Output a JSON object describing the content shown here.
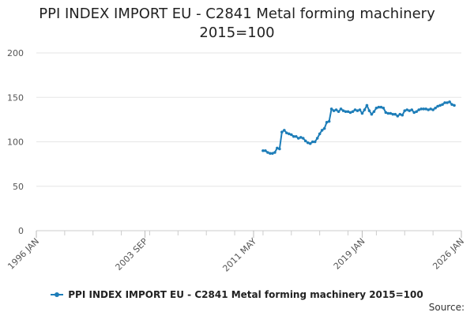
{
  "chart_data": {
    "type": "line",
    "title_lines": [
      "PPI INDEX IMPORT EU - C2841 Metal forming machinery",
      "2015=100"
    ],
    "ylim": [
      0,
      200
    ],
    "yticks": [
      "0",
      "50",
      "100",
      "150",
      "200"
    ],
    "xlim": [
      "1996-01",
      "2026-01"
    ],
    "xticks": [
      {
        "label": "1996 JAN",
        "date": "1996-01"
      },
      {
        "label": "2003 SEP",
        "date": "2003-09"
      },
      {
        "label": "2011 MAY",
        "date": "2011-05"
      },
      {
        "label": "2019 JAN",
        "date": "2019-01"
      },
      {
        "label": "2026 JAN",
        "date": "2026-01"
      }
    ],
    "grid": "horizontal",
    "legend_position": "bottom",
    "series": [
      {
        "name": "PPI INDEX IMPORT EU - C2841 Metal forming machinery 2015=100",
        "color": "#1d7db8",
        "points": [
          [
            "2012-01",
            90
          ],
          [
            "2012-03",
            90
          ],
          [
            "2012-05",
            88
          ],
          [
            "2012-07",
            87
          ],
          [
            "2012-09",
            87
          ],
          [
            "2012-11",
            88
          ],
          [
            "2013-01",
            93
          ],
          [
            "2013-03",
            92
          ],
          [
            "2013-05",
            111
          ],
          [
            "2013-07",
            113
          ],
          [
            "2013-09",
            110
          ],
          [
            "2013-11",
            109
          ],
          [
            "2014-01",
            108
          ],
          [
            "2014-03",
            106
          ],
          [
            "2014-05",
            106
          ],
          [
            "2014-07",
            104
          ],
          [
            "2014-09",
            105
          ],
          [
            "2014-11",
            104
          ],
          [
            "2015-01",
            101
          ],
          [
            "2015-03",
            99
          ],
          [
            "2015-05",
            98
          ],
          [
            "2015-07",
            100
          ],
          [
            "2015-09",
            100
          ],
          [
            "2015-11",
            104
          ],
          [
            "2016-01",
            109
          ],
          [
            "2016-03",
            113
          ],
          [
            "2016-05",
            115
          ],
          [
            "2016-07",
            122
          ],
          [
            "2016-09",
            123
          ],
          [
            "2016-11",
            137
          ],
          [
            "2017-01",
            135
          ],
          [
            "2017-03",
            136
          ],
          [
            "2017-05",
            134
          ],
          [
            "2017-07",
            137
          ],
          [
            "2017-09",
            135
          ],
          [
            "2017-11",
            134
          ],
          [
            "2018-01",
            134
          ],
          [
            "2018-03",
            133
          ],
          [
            "2018-05",
            134
          ],
          [
            "2018-07",
            136
          ],
          [
            "2018-09",
            135
          ],
          [
            "2018-11",
            136
          ],
          [
            "2019-01",
            132
          ],
          [
            "2019-03",
            136
          ],
          [
            "2019-05",
            141
          ],
          [
            "2019-07",
            135
          ],
          [
            "2019-09",
            131
          ],
          [
            "2019-11",
            134
          ],
          [
            "2020-01",
            138
          ],
          [
            "2020-03",
            139
          ],
          [
            "2020-05",
            139
          ],
          [
            "2020-07",
            138
          ],
          [
            "2020-09",
            133
          ],
          [
            "2020-11",
            132
          ],
          [
            "2021-01",
            132
          ],
          [
            "2021-03",
            131
          ],
          [
            "2021-05",
            131
          ],
          [
            "2021-07",
            129
          ],
          [
            "2021-09",
            131
          ],
          [
            "2021-11",
            130
          ],
          [
            "2022-01",
            135
          ],
          [
            "2022-03",
            136
          ],
          [
            "2022-05",
            135
          ],
          [
            "2022-07",
            136
          ],
          [
            "2022-09",
            133
          ],
          [
            "2022-11",
            134
          ],
          [
            "2023-01",
            136
          ],
          [
            "2023-03",
            137
          ],
          [
            "2023-05",
            137
          ],
          [
            "2023-07",
            137
          ],
          [
            "2023-09",
            136
          ],
          [
            "2023-11",
            137
          ],
          [
            "2024-01",
            136
          ],
          [
            "2024-03",
            138
          ],
          [
            "2024-05",
            140
          ],
          [
            "2024-07",
            141
          ],
          [
            "2024-09",
            142
          ],
          [
            "2024-11",
            144
          ],
          [
            "2025-01",
            144
          ],
          [
            "2025-03",
            145
          ],
          [
            "2025-05",
            142
          ],
          [
            "2025-07",
            141
          ]
        ]
      }
    ]
  },
  "legend": {
    "label": "PPI INDEX IMPORT EU - C2841 Metal forming machinery 2015=100"
  },
  "source": {
    "label": "Source:"
  }
}
